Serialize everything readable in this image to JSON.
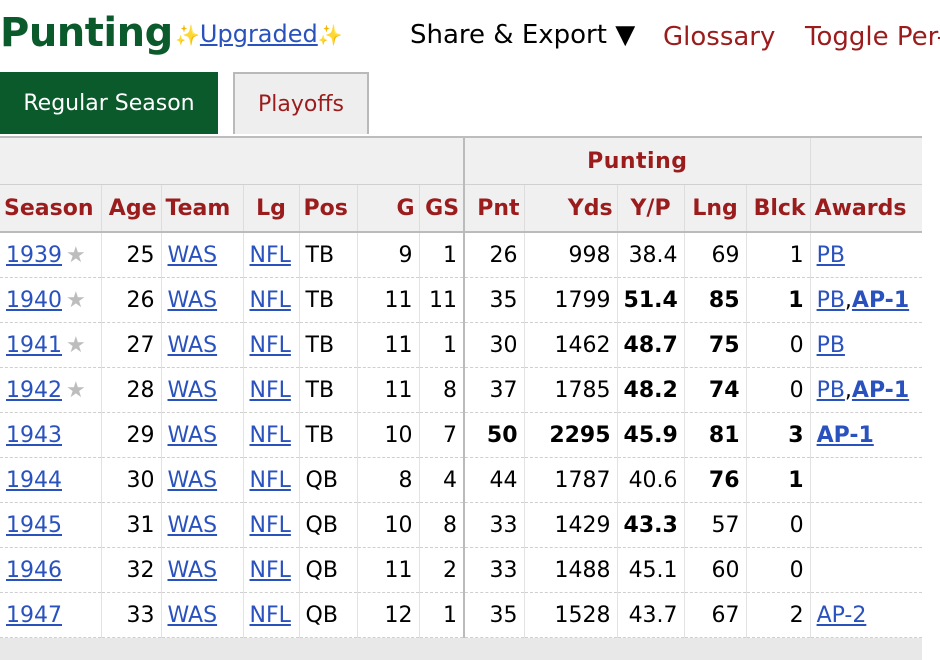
{
  "header": {
    "title": "Punting",
    "upgraded_link": "Upgraded",
    "sparkle": "✨",
    "share_export": "Share & Export ▼",
    "glossary": "Glossary",
    "toggle": "Toggle Per-"
  },
  "tabs": [
    {
      "label": "Regular Season",
      "active": true
    },
    {
      "label": "Playoffs",
      "active": false
    }
  ],
  "table": {
    "group_label": "Punting",
    "columns": [
      "Season",
      "Age",
      "Team",
      "Lg",
      "Pos",
      "G",
      "GS",
      "Pnt",
      "Yds",
      "Y/P",
      "Lng",
      "Blck",
      "Awards"
    ],
    "rows": [
      {
        "season": "1939",
        "star": "★",
        "age": "25",
        "team": "WAS",
        "lg": "NFL",
        "pos": "TB",
        "g": "9",
        "gs": "1",
        "pnt": "26",
        "yds": "998",
        "yp": "38.4",
        "lng": "69",
        "blck": "1",
        "awards": [
          {
            "text": "PB",
            "bold": false
          }
        ]
      },
      {
        "season": "1940",
        "star": "★",
        "age": "26",
        "team": "WAS",
        "lg": "NFL",
        "pos": "TB",
        "g": "11",
        "gs": "11",
        "pnt": "35",
        "yds": "1799",
        "yp": "51.4",
        "lng": "85",
        "blck": "1",
        "awards": [
          {
            "text": "PB",
            "bold": false
          },
          {
            "text": "AP-1",
            "bold": true
          }
        ]
      },
      {
        "season": "1941",
        "star": "★",
        "age": "27",
        "team": "WAS",
        "lg": "NFL",
        "pos": "TB",
        "g": "11",
        "gs": "1",
        "pnt": "30",
        "yds": "1462",
        "yp": "48.7",
        "lng": "75",
        "blck": "0",
        "awards": [
          {
            "text": "PB",
            "bold": false
          }
        ]
      },
      {
        "season": "1942",
        "star": "★",
        "age": "28",
        "team": "WAS",
        "lg": "NFL",
        "pos": "TB",
        "g": "11",
        "gs": "8",
        "pnt": "37",
        "yds": "1785",
        "yp": "48.2",
        "lng": "74",
        "blck": "0",
        "awards": [
          {
            "text": "PB",
            "bold": false
          },
          {
            "text": "AP-1",
            "bold": true
          }
        ]
      },
      {
        "season": "1943",
        "star": "",
        "age": "29",
        "team": "WAS",
        "lg": "NFL",
        "pos": "TB",
        "g": "10",
        "gs": "7",
        "pnt": "50",
        "yds": "2295",
        "yp": "45.9",
        "lng": "81",
        "blck": "3",
        "awards": [
          {
            "text": "AP-1",
            "bold": true
          }
        ]
      },
      {
        "season": "1944",
        "star": "",
        "age": "30",
        "team": "WAS",
        "lg": "NFL",
        "pos": "QB",
        "g": "8",
        "gs": "4",
        "pnt": "44",
        "yds": "1787",
        "yp": "40.6",
        "lng": "76",
        "blck": "1",
        "awards": []
      },
      {
        "season": "1945",
        "star": "",
        "age": "31",
        "team": "WAS",
        "lg": "NFL",
        "pos": "QB",
        "g": "10",
        "gs": "8",
        "pnt": "33",
        "yds": "1429",
        "yp": "43.3",
        "lng": "57",
        "blck": "0",
        "awards": []
      },
      {
        "season": "1946",
        "star": "",
        "age": "32",
        "team": "WAS",
        "lg": "NFL",
        "pos": "QB",
        "g": "11",
        "gs": "2",
        "pnt": "33",
        "yds": "1488",
        "yp": "45.1",
        "lng": "60",
        "blck": "0",
        "awards": []
      },
      {
        "season": "1947",
        "star": "",
        "age": "33",
        "team": "WAS",
        "lg": "NFL",
        "pos": "QB",
        "g": "12",
        "gs": "1",
        "pnt": "35",
        "yds": "1528",
        "yp": "43.7",
        "lng": "67",
        "blck": "2",
        "awards": [
          {
            "text": "AP-2",
            "bold": false
          }
        ]
      }
    ],
    "bold_cells": {
      "1940": [
        "yp",
        "lng",
        "blck"
      ],
      "1941": [
        "yp",
        "lng"
      ],
      "1942": [
        "yp",
        "lng"
      ],
      "1943": [
        "pnt",
        "yds",
        "yp",
        "lng",
        "blck"
      ],
      "1944": [
        "lng",
        "blck"
      ],
      "1945": [
        "yp"
      ]
    }
  },
  "colors": {
    "brand_green": "#0b5a2b",
    "header_red": "#9b1c1c",
    "link_blue": "#2a52be"
  }
}
